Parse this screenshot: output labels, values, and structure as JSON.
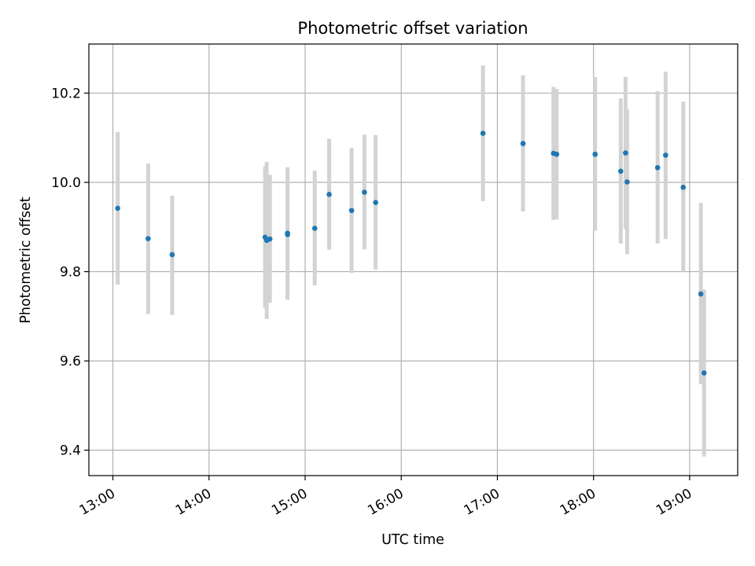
{
  "chart_data": {
    "type": "scatter",
    "title": "Photometric offset variation",
    "xlabel": "UTC time",
    "ylabel": "Photometric offset",
    "x_axis": "time (hours UTC, decimal)",
    "xlim": [
      "12:45",
      "19:30"
    ],
    "ylim": [
      9.343,
      10.31
    ],
    "x_ticks": [
      "13:00",
      "14:00",
      "15:00",
      "16:00",
      "17:00",
      "18:00",
      "19:00"
    ],
    "y_ticks": [
      "9.4",
      "9.6",
      "9.8",
      "10.0",
      "10.2"
    ],
    "grid": true,
    "colors": {
      "point": "#1f77b4",
      "errorbar": "#d3d3d3",
      "grid": "#b0b0b0"
    },
    "points": [
      {
        "time": "13:03",
        "y": 9.942,
        "lo": 9.771,
        "hi": 10.113
      },
      {
        "time": "13:22",
        "y": 9.874,
        "lo": 9.705,
        "hi": 10.042
      },
      {
        "time": "13:37",
        "y": 9.838,
        "lo": 9.703,
        "hi": 9.97
      },
      {
        "time": "14:35",
        "y": 9.877,
        "lo": 9.719,
        "hi": 10.036
      },
      {
        "time": "14:36",
        "y": 9.87,
        "lo": 9.694,
        "hi": 10.046
      },
      {
        "time": "14:38",
        "y": 9.873,
        "lo": 9.73,
        "hi": 10.017
      },
      {
        "time": "14:49",
        "y": 9.886,
        "lo": 9.74,
        "hi": 10.034
      },
      {
        "time": "14:49",
        "y": 9.883,
        "lo": 9.737,
        "hi": 10.03
      },
      {
        "time": "15:06",
        "y": 9.897,
        "lo": 9.769,
        "hi": 10.026
      },
      {
        "time": "15:15",
        "y": 9.973,
        "lo": 9.849,
        "hi": 10.098
      },
      {
        "time": "15:29",
        "y": 9.937,
        "lo": 9.797,
        "hi": 10.077
      },
      {
        "time": "15:37",
        "y": 9.978,
        "lo": 9.85,
        "hi": 10.107
      },
      {
        "time": "15:44",
        "y": 9.955,
        "lo": 9.805,
        "hi": 10.106
      },
      {
        "time": "16:51",
        "y": 10.11,
        "lo": 9.958,
        "hi": 10.262
      },
      {
        "time": "17:16",
        "y": 10.087,
        "lo": 9.935,
        "hi": 10.24
      },
      {
        "time": "17:35",
        "y": 10.065,
        "lo": 9.916,
        "hi": 10.214
      },
      {
        "time": "17:37",
        "y": 10.063,
        "lo": 9.917,
        "hi": 10.209
      },
      {
        "time": "18:01",
        "y": 10.063,
        "lo": 9.892,
        "hi": 10.236
      },
      {
        "time": "18:17",
        "y": 10.025,
        "lo": 9.863,
        "hi": 10.188
      },
      {
        "time": "18:20",
        "y": 10.066,
        "lo": 9.896,
        "hi": 10.236
      },
      {
        "time": "18:21",
        "y": 10.001,
        "lo": 9.839,
        "hi": 10.163
      },
      {
        "time": "18:40",
        "y": 10.033,
        "lo": 9.863,
        "hi": 10.204
      },
      {
        "time": "18:45",
        "y": 10.061,
        "lo": 9.873,
        "hi": 10.248
      },
      {
        "time": "18:56",
        "y": 9.989,
        "lo": 9.8,
        "hi": 10.181
      },
      {
        "time": "19:07",
        "y": 9.75,
        "lo": 9.548,
        "hi": 9.954
      },
      {
        "time": "19:09",
        "y": 9.573,
        "lo": 9.386,
        "hi": 9.76
      }
    ]
  }
}
